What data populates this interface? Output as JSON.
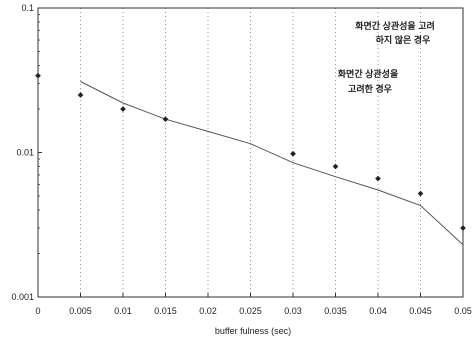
{
  "chart_data": {
    "type": "line",
    "title": "",
    "xlabel": "buffer fulness (sec)",
    "ylabel": "",
    "x_ticks": [
      "0",
      "0.005",
      "0.01",
      "0.015",
      "0.02",
      "0.025",
      "0.03",
      "0.035",
      "0.04",
      "0.045",
      "0.05"
    ],
    "y_ticks": [
      "0.1",
      "0.01",
      "0.001"
    ],
    "xlim": [
      0,
      0.05
    ],
    "ylim": [
      0.001,
      0.1
    ],
    "y_scale": "log",
    "grid": "dotted vertical",
    "legend_position": "top-right",
    "series": [
      {
        "name": "화면간 상관성을 고려하지 않은 경우",
        "style": "markers",
        "color": "#222222",
        "x": [
          0,
          0.005,
          0.01,
          0.015,
          0.03,
          0.035,
          0.04,
          0.045,
          0.05
        ],
        "y": [
          0.034,
          0.025,
          0.02,
          0.017,
          0.0098,
          0.008,
          0.0066,
          0.0052,
          0.003
        ]
      },
      {
        "name": "화면간 상관성을 고려한 경우",
        "style": "line",
        "color": "#555555",
        "x": [
          0.005,
          0.01,
          0.015,
          0.02,
          0.025,
          0.03,
          0.035,
          0.04,
          0.045,
          0.05
        ],
        "y": [
          0.031,
          0.022,
          0.017,
          0.014,
          0.0115,
          0.0085,
          0.0068,
          0.0055,
          0.0043,
          0.0023
        ]
      }
    ],
    "legend": [
      {
        "line1": "화면간 상관성을 고려",
        "line2": "하지 않은 경우"
      },
      {
        "line1": "화면간 상관성을",
        "line2": "고려한 경우"
      }
    ]
  }
}
